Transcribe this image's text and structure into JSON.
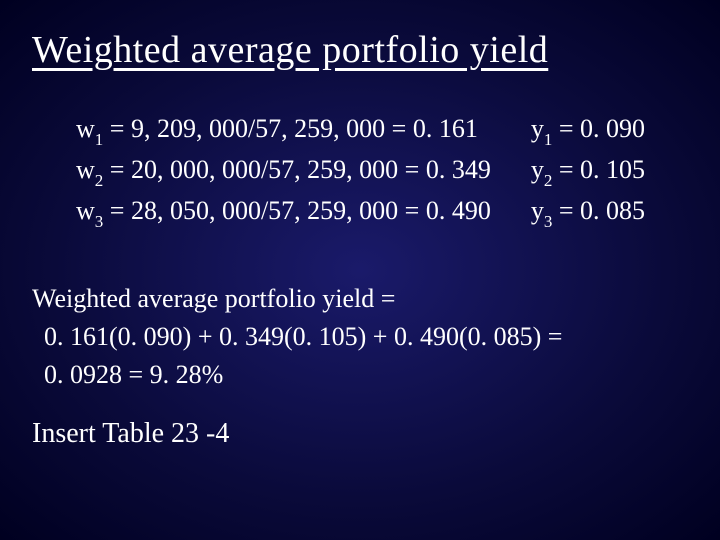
{
  "title": "Weighted average portfolio yield",
  "weights": {
    "w1": "w",
    "w1_sub": "1",
    "w1_rest": " =   9, 209, 000/57, 259, 000 = 0. 161",
    "w2": "w",
    "w2_sub": "2",
    "w2_rest": " = 20, 000, 000/57, 259, 000 = 0. 349",
    "w3": "w",
    "w3_sub": "3",
    "w3_rest": " = 28, 050, 000/57, 259, 000 = 0. 490"
  },
  "yields": {
    "y1": "y",
    "y1_sub": "1",
    "y1_rest": " = 0. 090",
    "y2": "y",
    "y2_sub": "2",
    "y2_rest": " = 0. 105",
    "y3": "y",
    "y3_sub": "3",
    "y3_rest": " = 0. 085"
  },
  "summary": {
    "line1": "Weighted average portfolio yield =",
    "line2": " 0. 161(0. 090) + 0. 349(0. 105) + 0. 490(0. 085) =",
    "line3": " 0. 0928 = 9. 28%"
  },
  "insert": "Insert Table 23 -4"
}
